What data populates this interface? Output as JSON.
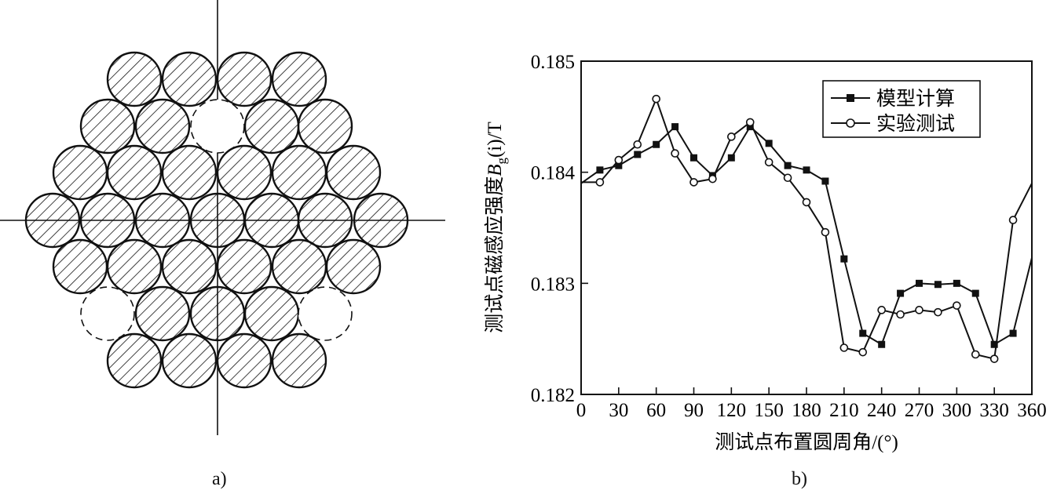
{
  "panel_a": {
    "caption": "a)"
  },
  "panel_b": {
    "caption": "b)"
  },
  "chart_data": {
    "type": "line",
    "title": "",
    "xlabel": "测试点布置圆周角/(°)",
    "ylabel_prefix": "测试点磁感应强度",
    "ylabel_symbol": "B",
    "ylabel_subscript": "g",
    "ylabel_suffix": "(i)/T",
    "xlim": [
      0,
      360
    ],
    "ylim": [
      0.182,
      0.185
    ],
    "x_ticks": [
      0,
      30,
      60,
      90,
      120,
      150,
      180,
      210,
      240,
      270,
      300,
      330,
      360
    ],
    "y_ticks": [
      "0.182",
      "0.183",
      "0.184",
      "0.185"
    ],
    "legend_position": "top-right",
    "grid": false,
    "series": [
      {
        "name": "模型计算",
        "marker": "filled-square",
        "x": [
          0,
          15,
          30,
          45,
          60,
          75,
          90,
          105,
          120,
          135,
          150,
          165,
          180,
          195,
          210,
          225,
          240,
          255,
          270,
          285,
          300,
          315,
          330,
          345,
          360
        ],
        "y": [
          0.1839,
          0.18402,
          0.18406,
          0.18416,
          0.18425,
          0.18441,
          0.18413,
          0.18397,
          0.18413,
          0.18441,
          0.18426,
          0.18406,
          0.18402,
          0.18392,
          0.18322,
          0.18255,
          0.18245,
          0.18291,
          0.183,
          0.18299,
          0.183,
          0.18291,
          0.18245,
          0.18255,
          0.18323
        ]
      },
      {
        "name": "实验测试",
        "marker": "open-circle",
        "x": [
          0,
          15,
          30,
          45,
          60,
          75,
          90,
          105,
          120,
          135,
          150,
          165,
          180,
          195,
          210,
          225,
          240,
          255,
          270,
          285,
          300,
          315,
          330,
          345,
          360
        ],
        "y": [
          0.18391,
          0.18391,
          0.18411,
          0.18425,
          0.18466,
          0.18417,
          0.18391,
          0.18394,
          0.18432,
          0.18445,
          0.18409,
          0.18395,
          0.18373,
          0.18346,
          0.18242,
          0.18238,
          0.18276,
          0.18272,
          0.18276,
          0.18274,
          0.1828,
          0.18236,
          0.18232,
          0.18357,
          0.1839
        ]
      }
    ]
  }
}
